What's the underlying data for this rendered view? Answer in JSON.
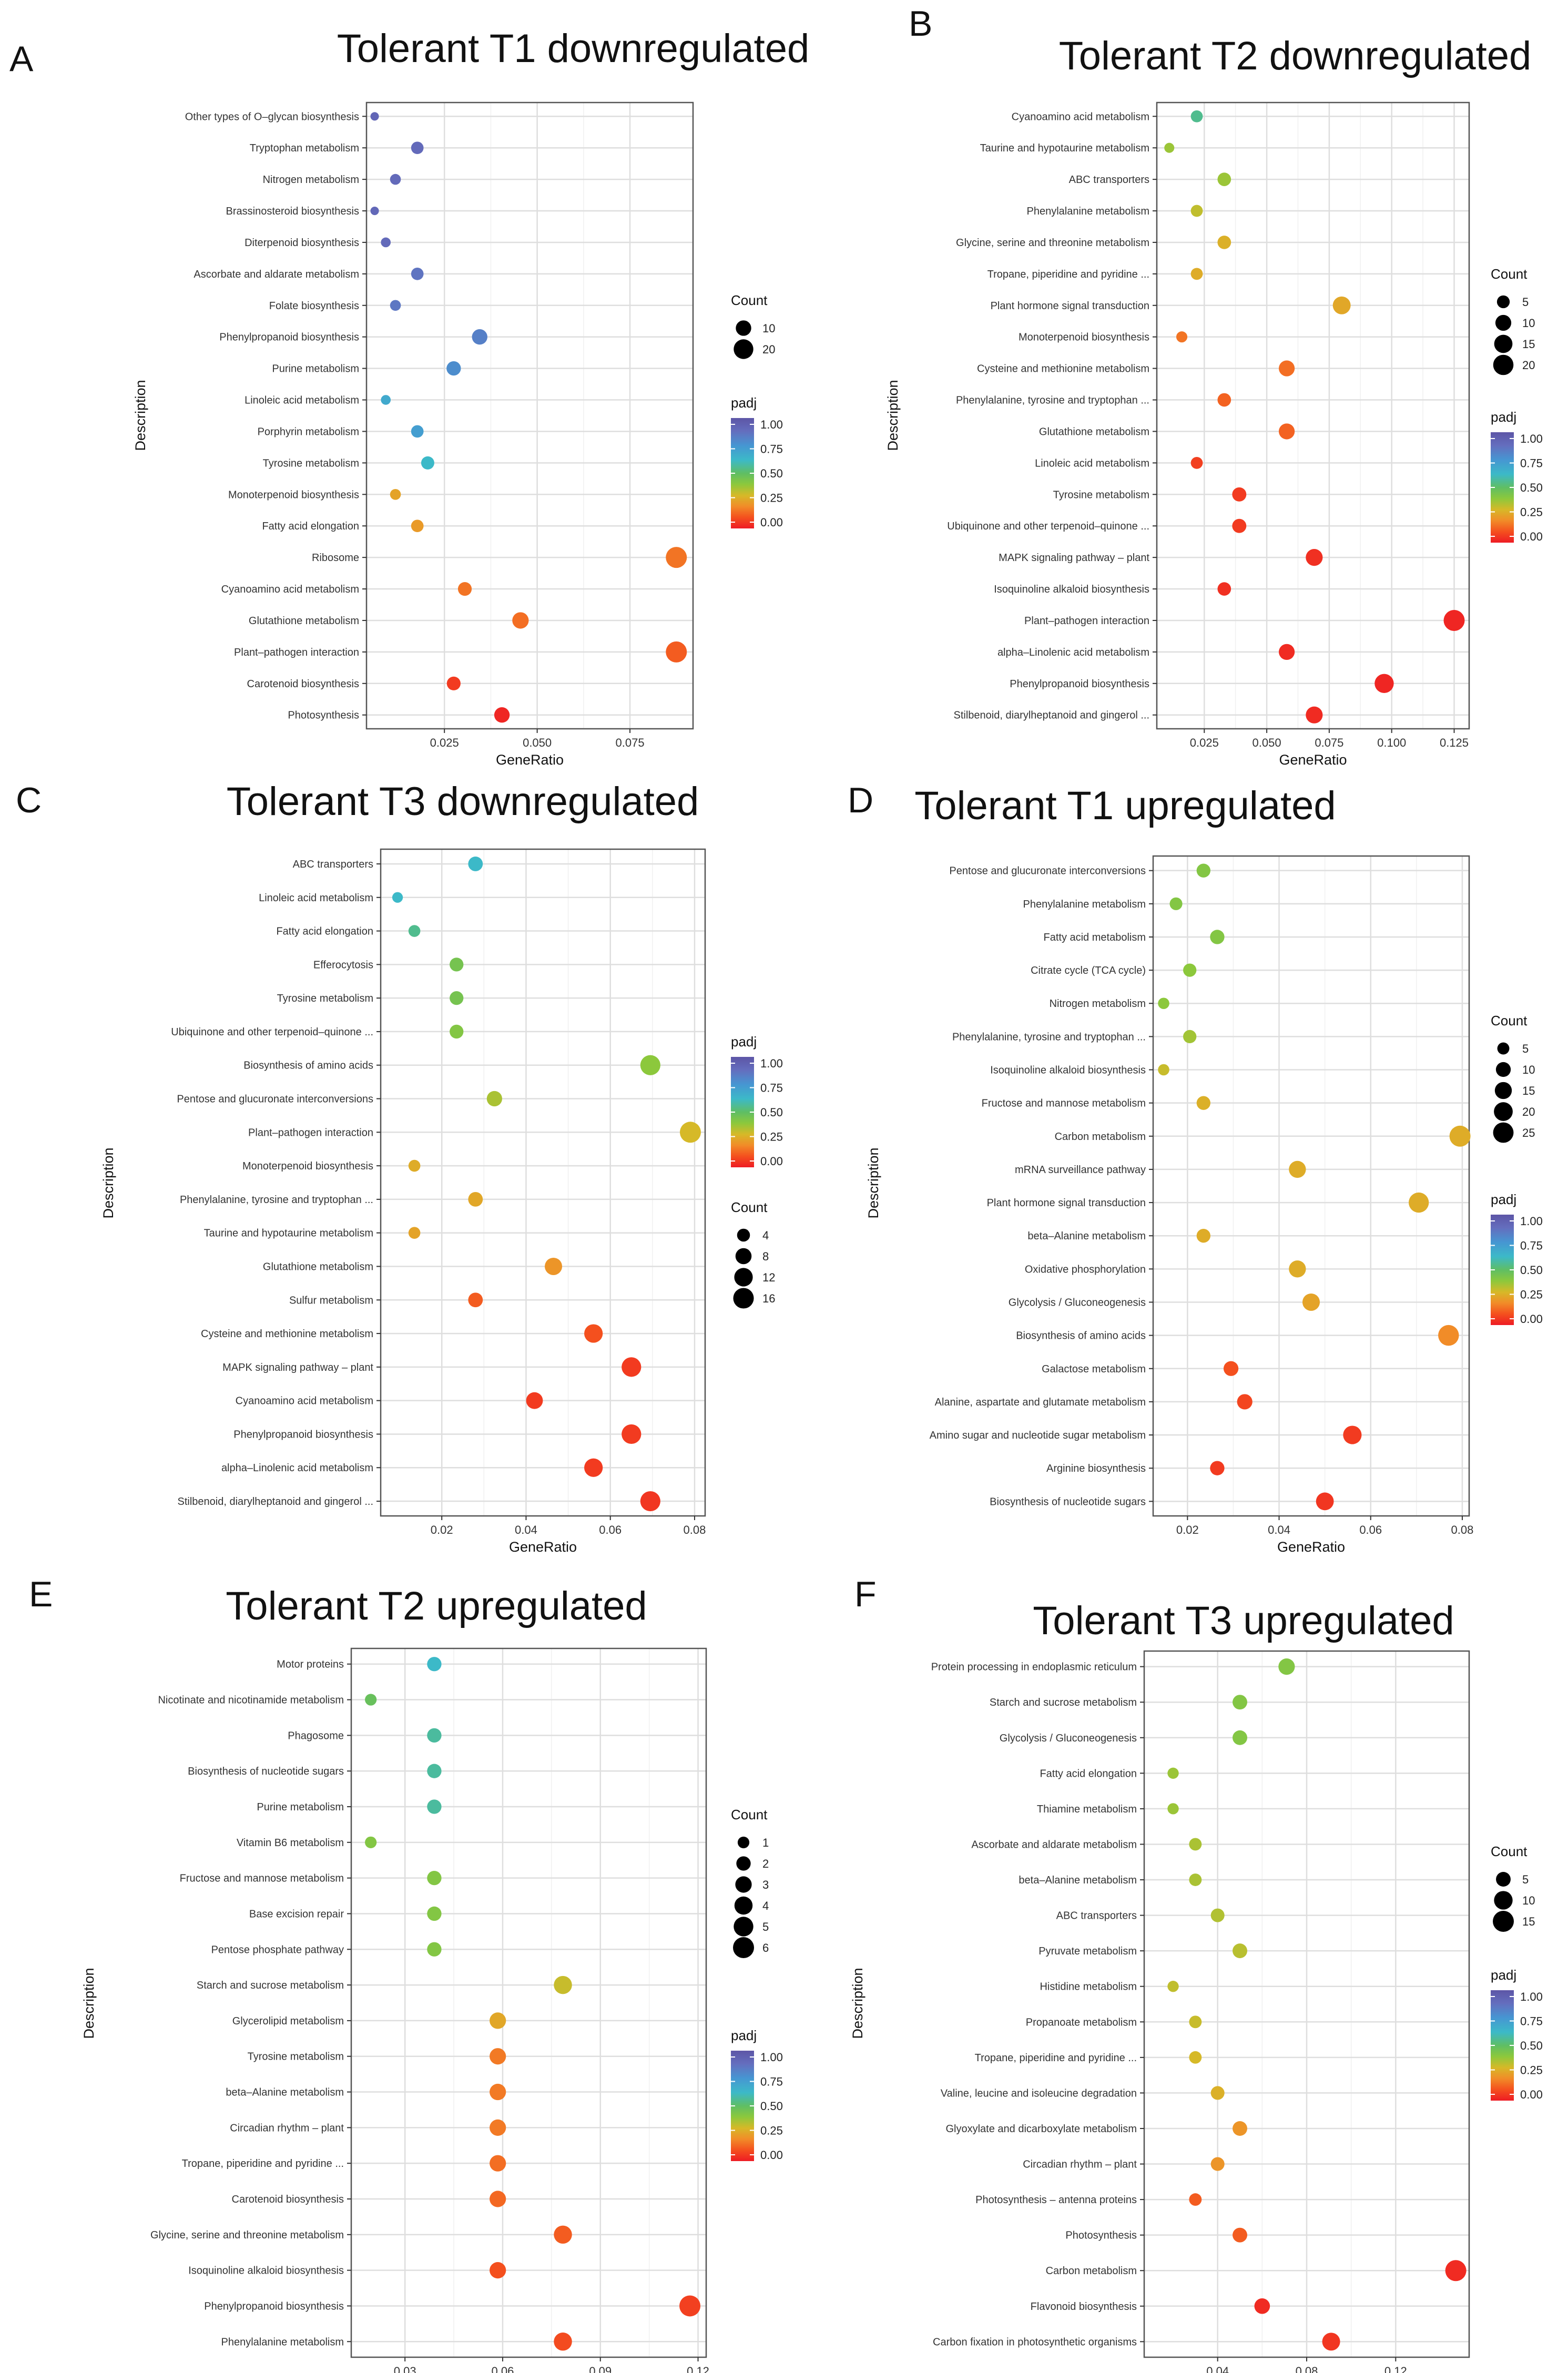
{
  "figure": {
    "panels": [
      {
        "letter": "A",
        "chart_data": {
          "type": "scatter",
          "title": "Tolerant T1 downregulated",
          "xlabel": "GeneRatio",
          "ylabel": "Description",
          "xlim": [
            0.004,
            0.092
          ],
          "xticks": [
            0.025,
            0.05,
            0.075
          ],
          "xtick_labels": [
            "0.025",
            "0.050",
            "0.075"
          ],
          "categories": [
            "Other types of O–glycan biosynthesis",
            "Tryptophan metabolism",
            "Nitrogen metabolism",
            "Brassinosteroid biosynthesis",
            "Diterpenoid biosynthesis",
            "Ascorbate and aldarate metabolism",
            "Folate biosynthesis",
            "Phenylpropanoid biosynthesis",
            "Purine metabolism",
            "Linoleic acid metabolism",
            "Porphyrin metabolism",
            "Tyrosine metabolism",
            "Monoterpenoid biosynthesis",
            "Fatty acid elongation",
            "Ribosome",
            "Cyanoamino acid metabolism",
            "Glutathione metabolism",
            "Plant–pathogen interaction",
            "Carotenoid biosynthesis",
            "Photosynthesis"
          ],
          "x": [
            0.0062,
            0.0177,
            0.0118,
            0.0062,
            0.0092,
            0.0177,
            0.0118,
            0.0345,
            0.0275,
            0.0092,
            0.0177,
            0.0205,
            0.0118,
            0.0177,
            0.0875,
            0.0305,
            0.0455,
            0.0875,
            0.0275,
            0.0405
          ],
          "count": [
            1,
            5,
            3,
            1,
            2,
            5,
            3,
            10,
            8,
            2,
            5,
            6,
            3,
            5,
            24,
            7,
            12,
            24,
            7,
            10
          ],
          "padj": [
            0.92,
            0.9,
            0.9,
            0.91,
            0.9,
            0.86,
            0.85,
            0.82,
            0.78,
            0.68,
            0.72,
            0.62,
            0.25,
            0.23,
            0.16,
            0.16,
            0.15,
            0.12,
            0.06,
            0.02
          ],
          "size_legend": {
            "title": "Count",
            "values": [
              10,
              20
            ],
            "labels": [
              "10",
              "20"
            ]
          },
          "color_legend": {
            "title": "padj",
            "ticks": [
              "1.00",
              "0.75",
              "0.50",
              "0.25",
              "0.00"
            ],
            "low_color": "#ee1b24",
            "high_color": "#5d55a6"
          }
        }
      },
      {
        "letter": "B",
        "chart_data": {
          "type": "scatter",
          "title": "Tolerant T2 downregulated",
          "xlabel": "GeneRatio",
          "ylabel": "Description",
          "xlim": [
            0.006,
            0.131
          ],
          "xticks": [
            0.025,
            0.05,
            0.075,
            0.1,
            0.125
          ],
          "xtick_labels": [
            "0.025",
            "0.050",
            "0.075",
            "0.100",
            "0.125"
          ],
          "categories": [
            "Cyanoamino acid metabolism",
            "Taurine and hypotaurine metabolism",
            "ABC transporters",
            "Phenylalanine metabolism",
            "Glycine, serine and threonine metabolism",
            "Tropane, piperidine and pyridine ...",
            "Plant hormone signal transduction",
            "Monoterpenoid biosynthesis",
            "Cysteine and methionine metabolism",
            "Phenylalanine, tyrosine and tryptophan ...",
            "Glutathione metabolism",
            "Linoleic acid metabolism",
            "Tyrosine metabolism",
            "Ubiquinone and other terpenoid–quinone ...",
            "MAPK signaling pathway – plant",
            "Isoquinoline alkaloid biosynthesis",
            "Plant–pathogen interaction",
            "alpha–Linolenic acid metabolism",
            "Phenylpropanoid biosynthesis",
            "Stilbenoid, diarylheptanoid and gingerol ..."
          ],
          "x": [
            0.022,
            0.011,
            0.033,
            0.022,
            0.033,
            0.022,
            0.08,
            0.016,
            0.058,
            0.033,
            0.058,
            0.022,
            0.039,
            0.039,
            0.069,
            0.033,
            0.125,
            0.058,
            0.097,
            0.069
          ],
          "count": [
            4,
            2,
            6,
            4,
            6,
            4,
            14,
            3,
            10,
            6,
            10,
            4,
            7,
            7,
            12,
            6,
            22,
            10,
            17,
            12
          ],
          "padj": [
            0.55,
            0.38,
            0.38,
            0.33,
            0.28,
            0.27,
            0.26,
            0.16,
            0.15,
            0.13,
            0.13,
            0.07,
            0.06,
            0.06,
            0.04,
            0.04,
            0.02,
            0.03,
            0.02,
            0.03
          ],
          "size_legend": {
            "title": "Count",
            "values": [
              5,
              10,
              15,
              20
            ],
            "labels": [
              "5",
              "10",
              "15",
              "20"
            ]
          },
          "color_legend": {
            "title": "padj",
            "ticks": [
              "1.00",
              "0.75",
              "0.50",
              "0.25",
              "0.00"
            ],
            "low_color": "#ee1b24",
            "high_color": "#5d55a6"
          }
        }
      },
      {
        "letter": "C",
        "chart_data": {
          "type": "scatter",
          "title": "Tolerant T3 downregulated",
          "xlabel": "GeneRatio",
          "ylabel": "Description",
          "xlim": [
            0.0055,
            0.0825
          ],
          "xticks": [
            0.02,
            0.04,
            0.06,
            0.08
          ],
          "xtick_labels": [
            "0.02",
            "0.04",
            "0.06",
            "0.08"
          ],
          "categories": [
            "ABC transporters",
            "Linoleic acid metabolism",
            "Fatty acid elongation",
            "Efferocytosis",
            "Tyrosine metabolism",
            "Ubiquinone and other terpenoid–quinone ...",
            "Biosynthesis of amino acids",
            "Pentose and glucuronate interconversions",
            "Plant–pathogen interaction",
            "Monoterpenoid biosynthesis",
            "Phenylalanine, tyrosine and tryptophan ...",
            "Taurine and hypotaurine metabolism",
            "Glutathione metabolism",
            "Sulfur metabolism",
            "Cysteine and methionine metabolism",
            "MAPK signaling pathway – plant",
            "Cyanoamino acid metabolism",
            "Phenylpropanoid biosynthesis",
            "alpha–Linolenic acid metabolism",
            "Stilbenoid, diarylheptanoid and gingerol ..."
          ],
          "x": [
            0.028,
            0.0095,
            0.0135,
            0.0235,
            0.0235,
            0.0235,
            0.0695,
            0.0325,
            0.079,
            0.0135,
            0.028,
            0.0135,
            0.0465,
            0.028,
            0.056,
            0.065,
            0.042,
            0.065,
            0.056,
            0.0695
          ],
          "count": [
            6,
            2,
            3,
            5,
            5,
            5,
            15,
            7,
            17,
            3,
            6,
            3,
            10,
            6,
            12,
            14,
            9,
            14,
            12,
            15
          ],
          "padj": [
            0.62,
            0.62,
            0.55,
            0.45,
            0.45,
            0.42,
            0.4,
            0.36,
            0.3,
            0.27,
            0.26,
            0.25,
            0.22,
            0.12,
            0.1,
            0.06,
            0.06,
            0.06,
            0.06,
            0.05
          ],
          "size_legend": {
            "title": "Count",
            "values": [
              4,
              8,
              12,
              16
            ],
            "labels": [
              "4",
              "8",
              "12",
              "16"
            ]
          },
          "color_legend": {
            "title": "padj",
            "ticks": [
              "1.00",
              "0.75",
              "0.50",
              "0.25",
              "0.00"
            ],
            "low_color": "#ee1b24",
            "high_color": "#5d55a6"
          }
        }
      },
      {
        "letter": "D",
        "chart_data": {
          "type": "scatter",
          "title": "Tolerant T1 upregulated",
          "xlabel": "GeneRatio",
          "ylabel": "Description",
          "xlim": [
            0.0125,
            0.0815
          ],
          "xticks": [
            0.02,
            0.04,
            0.06,
            0.08
          ],
          "xtick_labels": [
            "0.02",
            "0.04",
            "0.06",
            "0.08"
          ],
          "categories": [
            "Pentose and glucuronate interconversions",
            "Phenylalanine metabolism",
            "Fatty acid metabolism",
            "Citrate cycle (TCA cycle)",
            "Nitrogen metabolism",
            "Phenylalanine, tyrosine and tryptophan ...",
            "Isoquinoline alkaloid biosynthesis",
            "Fructose and mannose metabolism",
            "Carbon metabolism",
            "mRNA surveillance pathway",
            "Plant hormone signal transduction",
            "beta–Alanine metabolism",
            "Oxidative phosphorylation",
            "Glycolysis / Gluconeogenesis",
            "Biosynthesis of amino acids",
            "Galactose metabolism",
            "Alanine, aspartate and glutamate metabolism",
            "Amino sugar and nucleotide sugar metabolism",
            "Arginine biosynthesis",
            "Biosynthesis of nucleotide sugars"
          ],
          "x": [
            0.0235,
            0.0175,
            0.0265,
            0.0205,
            0.0148,
            0.0205,
            0.0148,
            0.0235,
            0.0795,
            0.044,
            0.0705,
            0.0235,
            0.044,
            0.047,
            0.077,
            0.0295,
            0.0325,
            0.056,
            0.0265,
            0.05
          ],
          "count": [
            8,
            6,
            9,
            7,
            4,
            7,
            4,
            8,
            27,
            15,
            24,
            8,
            15,
            16,
            26,
            10,
            11,
            19,
            9,
            17
          ],
          "padj": [
            0.42,
            0.42,
            0.42,
            0.4,
            0.4,
            0.37,
            0.32,
            0.28,
            0.27,
            0.27,
            0.27,
            0.27,
            0.27,
            0.25,
            0.2,
            0.1,
            0.08,
            0.06,
            0.06,
            0.05
          ],
          "size_legend": {
            "title": "Count",
            "values": [
              5,
              10,
              15,
              20,
              25
            ],
            "labels": [
              "5",
              "10",
              "15",
              "20",
              "25"
            ]
          },
          "color_legend": {
            "title": "padj",
            "ticks": [
              "1.00",
              "0.75",
              "0.50",
              "0.25",
              "0.00"
            ],
            "low_color": "#ee1b24",
            "high_color": "#5d55a6"
          }
        }
      },
      {
        "letter": "E",
        "chart_data": {
          "type": "scatter",
          "title": "Tolerant T2 upregulated",
          "xlabel": "GeneRatio",
          "ylabel": "Description",
          "xlim": [
            0.0135,
            0.1225
          ],
          "xticks": [
            0.03,
            0.06,
            0.09,
            0.12
          ],
          "xtick_labels": [
            "0.03",
            "0.06",
            "0.09",
            "0.12"
          ],
          "categories": [
            "Motor proteins",
            "Nicotinate and nicotinamide metabolism",
            "Phagosome",
            "Biosynthesis of nucleotide sugars",
            "Purine metabolism",
            "Vitamin B6 metabolism",
            "Fructose and mannose metabolism",
            "Base excision repair",
            "Pentose phosphate pathway",
            "Starch and sucrose metabolism",
            "Glycerolipid metabolism",
            "Tyrosine metabolism",
            "beta–Alanine metabolism",
            "Circadian rhythm – plant",
            "Tropane, piperidine and pyridine ...",
            "Carotenoid biosynthesis",
            "Glycine, serine and threonine metabolism",
            "Isoquinoline alkaloid biosynthesis",
            "Phenylpropanoid biosynthesis",
            "Phenylalanine metabolism"
          ],
          "x": [
            0.039,
            0.0195,
            0.039,
            0.039,
            0.039,
            0.0195,
            0.039,
            0.039,
            0.039,
            0.0785,
            0.0585,
            0.0585,
            0.0585,
            0.0585,
            0.0585,
            0.0585,
            0.0785,
            0.0585,
            0.1175,
            0.0785
          ],
          "count": [
            2,
            1,
            2,
            2,
            2,
            1,
            2,
            2,
            2,
            4,
            3,
            3,
            3,
            3,
            3,
            3,
            4,
            3,
            6,
            4
          ],
          "padj": [
            0.62,
            0.48,
            0.57,
            0.57,
            0.57,
            0.42,
            0.42,
            0.42,
            0.42,
            0.32,
            0.26,
            0.17,
            0.17,
            0.17,
            0.15,
            0.14,
            0.12,
            0.1,
            0.07,
            0.09
          ],
          "size_legend": {
            "title": "Count",
            "values": [
              1,
              2,
              3,
              4,
              5,
              6
            ],
            "labels": [
              "1",
              "2",
              "3",
              "4",
              "5",
              "6"
            ]
          },
          "color_legend": {
            "title": "padj",
            "ticks": [
              "1.00",
              "0.75",
              "0.50",
              "0.25",
              "0.00"
            ],
            "low_color": "#ee1b24",
            "high_color": "#5d55a6"
          }
        }
      },
      {
        "letter": "F",
        "chart_data": {
          "type": "scatter",
          "title": "Tolerant T3 upregulated",
          "xlabel": "GeneRatio",
          "ylabel": "Description",
          "xlim": [
            0.007,
            0.153
          ],
          "xticks": [
            0.04,
            0.08,
            0.12
          ],
          "xtick_labels": [
            "0.04",
            "0.08",
            "0.12"
          ],
          "categories": [
            "Protein processing in endoplasmic reticulum",
            "Starch and sucrose metabolism",
            "Glycolysis / Gluconeogenesis",
            "Fatty acid elongation",
            "Thiamine metabolism",
            "Ascorbate and aldarate metabolism",
            "beta–Alanine metabolism",
            "ABC transporters",
            "Pyruvate metabolism",
            "Histidine metabolism",
            "Propanoate metabolism",
            "Tropane, piperidine and pyridine ...",
            "Valine, leucine and isoleucine degradation",
            "Glyoxylate and dicarboxylate metabolism",
            "Circadian rhythm – plant",
            "Photosynthesis – antenna proteins",
            "Photosynthesis",
            "Carbon metabolism",
            "Flavonoid biosynthesis",
            "Carbon fixation in photosynthetic organisms"
          ],
          "x": [
            0.071,
            0.05,
            0.05,
            0.02,
            0.02,
            0.03,
            0.03,
            0.04,
            0.05,
            0.02,
            0.03,
            0.03,
            0.04,
            0.05,
            0.04,
            0.03,
            0.05,
            0.147,
            0.06,
            0.091
          ],
          "count": [
            7,
            5,
            5,
            2,
            2,
            3,
            3,
            4,
            5,
            2,
            3,
            3,
            4,
            5,
            4,
            3,
            5,
            14,
            6,
            9
          ],
          "padj": [
            0.42,
            0.42,
            0.42,
            0.38,
            0.38,
            0.36,
            0.36,
            0.35,
            0.34,
            0.33,
            0.32,
            0.3,
            0.28,
            0.22,
            0.22,
            0.12,
            0.12,
            0.03,
            0.03,
            0.05
          ],
          "size_legend": {
            "title": "Count",
            "values": [
              5,
              10,
              15
            ],
            "labels": [
              "5",
              "10",
              "15"
            ]
          },
          "color_legend": {
            "title": "padj",
            "ticks": [
              "1.00",
              "0.75",
              "0.50",
              "0.25",
              "0.00"
            ],
            "low_color": "#ee1b24",
            "high_color": "#5d55a6"
          }
        }
      }
    ]
  }
}
